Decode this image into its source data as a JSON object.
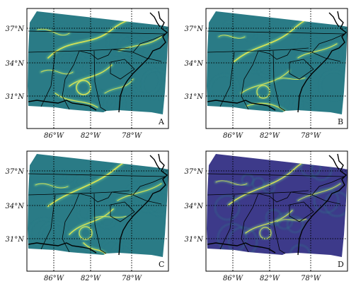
{
  "figure": {
    "panels": [
      {
        "label": "A",
        "style": "a"
      },
      {
        "label": "B",
        "style": "b"
      },
      {
        "label": "C",
        "style": "c"
      },
      {
        "label": "D",
        "style": "d"
      }
    ],
    "lat_tick_labels": [
      "37°N",
      "34°N",
      "31°N"
    ],
    "lon_tick_labels": [
      "86°W",
      "82°W",
      "78°W"
    ],
    "colormap": {
      "low": "#3b1f6e",
      "mid": "#2f7f8a",
      "high": "#e6e94f",
      "base": "#2a7b86",
      "base_dark": "#3d3a8a"
    },
    "gridline_style": "dotted",
    "map_feature_color": "#000000"
  }
}
